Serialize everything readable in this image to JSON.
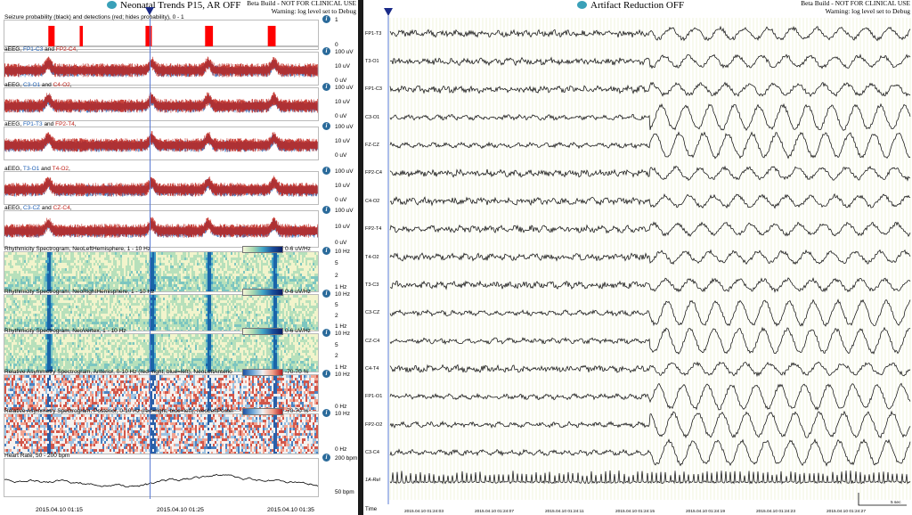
{
  "left_window": {
    "title": "Neonatal Trends P15, AR OFF",
    "beta_notice": "Beta Build - NOT FOR CLINICAL USE",
    "warning": "Warning: log level set to Debug",
    "panels": [
      {
        "title_parts": [
          "Seizure probability (black) and detections (red; hides probability),  0 - 1"
        ],
        "ticks": [
          "1",
          "0"
        ]
      },
      {
        "title_parts": [
          "aEEG, ",
          "FP1-C3",
          " and ",
          "FP2-C4",
          ","
        ],
        "ticks": [
          "100 uV",
          "10 uV",
          "0 uV"
        ]
      },
      {
        "title_parts": [
          "aEEG, ",
          "C3-O1",
          " and ",
          "C4-O2",
          ","
        ],
        "ticks": [
          "100 uV",
          "10 uV",
          "0 uV"
        ]
      },
      {
        "title_parts": [
          "aEEG, ",
          "FP1-T3",
          " and ",
          "FP2-T4",
          ","
        ],
        "ticks": [
          "100 uV",
          "10 uV",
          "0 uV"
        ]
      },
      {
        "title_parts": [
          "aEEG, ",
          "T3-O1",
          " and ",
          "T4-O2",
          ","
        ],
        "ticks": [
          "100 uV",
          "10 uV",
          "0 uV"
        ]
      },
      {
        "title_parts": [
          "aEEG, ",
          "C3-CZ",
          " and ",
          "CZ-C4",
          ","
        ],
        "ticks": [
          "100 uV",
          "10 uV",
          "0 uV"
        ]
      },
      {
        "title_parts": [
          "Rhythmicity Spectrogram, NeoLeftHemisphere, 1 - 10 Hz"
        ],
        "colorbar_label": "0-6 uV/Hz",
        "ticks": [
          "10 Hz",
          "5",
          "2",
          "1 Hz"
        ]
      },
      {
        "title_parts": [
          "Rhythmicity Spectrogram, NeoRightHemisphere, 1 - 10 Hz"
        ],
        "colorbar_label": "0-6 uV/Hz",
        "ticks": [
          "10 Hz",
          "5",
          "2",
          "1 Hz"
        ]
      },
      {
        "title_parts": [
          "Rhythmicity Spectrogram, NeoVertex, 1 - 10 Hz"
        ],
        "colorbar_label": "0-6 uV/Hz",
        "ticks": [
          "10 Hz",
          "5",
          "2",
          "1 Hz"
        ]
      },
      {
        "title_parts": [
          "Relative Asymmetry Spectrogram, Anterior, 0-10 Hz (red=right, blue=left), NeoLeftAnterio"
        ],
        "colorbar_label": "-70-70 %",
        "ticks": [
          "10 Hz",
          "0 Hz"
        ]
      },
      {
        "title_parts": [
          "Relative Asymmetry Spectrogram, Posterior, 0-10 Hz (red=right, blue=left), NeoLeftPoster"
        ],
        "colorbar_label": "-70-70 %",
        "ticks": [
          "10 Hz",
          "0 Hz"
        ]
      },
      {
        "title_parts": [
          "Heart Rate, 50 - 200 bpm"
        ],
        "ticks": [
          "200 bpm",
          "50 bpm"
        ]
      }
    ],
    "time_labels": [
      "2015.04.10 01:15",
      "2015.04.10 01:25",
      "2015.04.10 01:35"
    ]
  },
  "right_window": {
    "title": "Artifact Reduction OFF",
    "beta_notice": "Beta Build - NOT FOR CLINICAL USE",
    "warning": "Warning: log level set to Debug",
    "channels": [
      "FP1-T3",
      "T3-O1",
      "FP1-C3",
      "C3-O1",
      "FZ-CZ",
      "FP2-C4",
      "C4-O2",
      "FP2-T4",
      "T4-O2",
      "T3-C3",
      "C3-CZ",
      "CZ-C4",
      "C4-T4",
      "FP1-O1",
      "FP2-O2",
      "C3-C4",
      "1A-Rel"
    ],
    "time_axis_label": "Time",
    "time_labels": [
      "2015.04.10 01:24:03",
      "2015.04.10 01:24:07",
      "2015.04.10 01:24:11",
      "2015.04.10 01:24:15",
      "2015.04.10 01:24:19",
      "2015.04.10 01:24:23",
      "2015.04.10 01:24:27"
    ],
    "scale_label": "5 sec"
  },
  "seizure_detections": [
    {
      "start": 0.14,
      "end": 0.16
    },
    {
      "start": 0.24,
      "end": 0.25
    },
    {
      "start": 0.45,
      "end": 0.47
    },
    {
      "start": 0.64,
      "end": 0.665
    },
    {
      "start": 0.84,
      "end": 0.865
    }
  ],
  "colors": {
    "aeeg_left": "#2e6fc0",
    "aeeg_right": "#c0221a",
    "detection": "#ff0000",
    "cursor": "#1a2a88"
  }
}
